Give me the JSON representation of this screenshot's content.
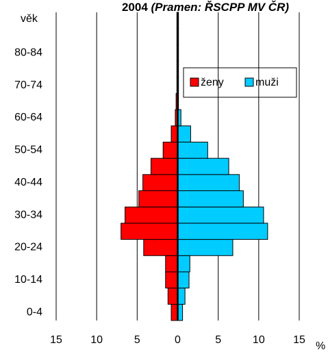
{
  "chart_data": {
    "type": "pyramid",
    "title": "2004",
    "subtitle": "(Pramen: ŘSCPP MV ČR)",
    "y_label": "věk",
    "x_label": "%",
    "categories": [
      "0-4",
      null,
      "10-14",
      null,
      "20-24",
      null,
      "30-34",
      null,
      "40-44",
      null,
      "50-54",
      null,
      "60-64",
      null,
      "70-74",
      null,
      "80-84",
      null,
      null
    ],
    "series": [
      {
        "name": "ženy",
        "color": "#ff0000",
        "values": [
          -0.8,
          -1.2,
          -1.5,
          -1.5,
          -4.2,
          -7.0,
          -6.5,
          -4.8,
          -4.3,
          -3.3,
          -1.8,
          -0.8,
          -0.3,
          -0.2,
          -0.1,
          -0.1,
          -0.1,
          -0.1,
          -0.1
        ]
      },
      {
        "name": "muži",
        "color": "#00ccff",
        "values": [
          0.6,
          0.9,
          1.4,
          1.5,
          6.8,
          11.1,
          10.6,
          8.1,
          7.6,
          6.3,
          3.7,
          1.6,
          0.4,
          0.1,
          0.1,
          0.1,
          0.1,
          0.1,
          0.1
        ]
      }
    ],
    "xlim": [
      -15,
      15
    ],
    "xticks": [
      {
        "value": -15,
        "label": "15"
      },
      {
        "value": -10,
        "label": "10"
      },
      {
        "value": -5,
        "label": "5"
      },
      0,
      5,
      10,
      15
    ],
    "grid": true,
    "legend": "top-right"
  }
}
